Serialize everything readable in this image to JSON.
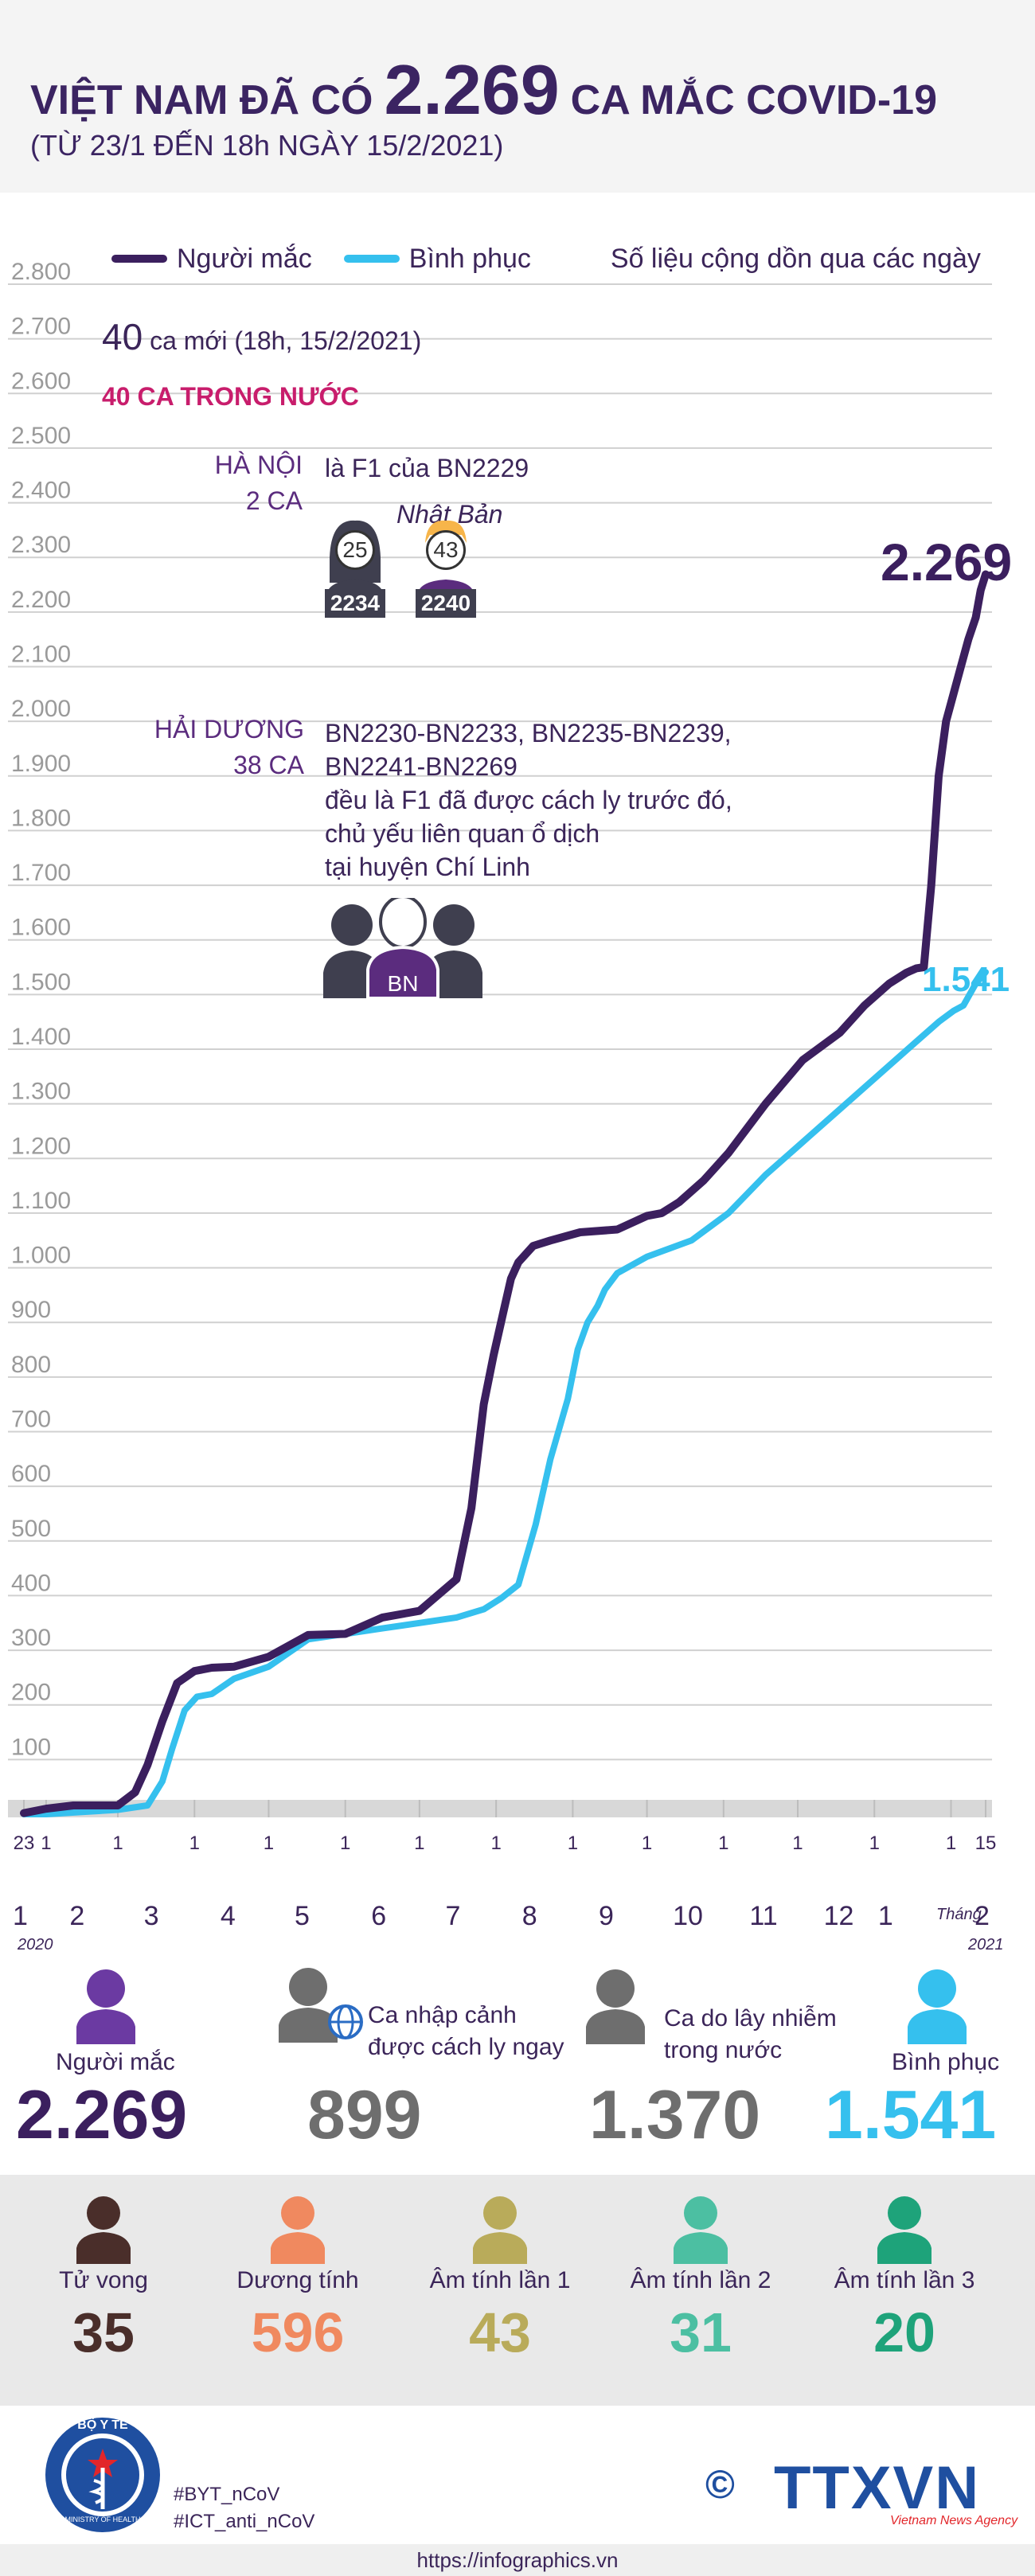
{
  "header": {
    "title_prefix": "VIỆT NAM ĐÃ CÓ",
    "title_number": "2.269",
    "title_suffix": "CA MẮC COVID-19",
    "subtitle": "(TỪ 23/1 ĐẾN 18h NGÀY 15/2/2021)"
  },
  "legend": {
    "infected_label": "Người mắc",
    "recovered_label": "Bình phục",
    "note": "Số liệu cộng dồn qua các ngày"
  },
  "colors": {
    "infected": "#3b1f5e",
    "recovered": "#35c0ee",
    "deaths": "#4a2e2a",
    "positive": "#f0895f",
    "neg1": "#b9ab5a",
    "neg2": "#4cbfa2",
    "neg3": "#1ea37a",
    "imported": "#6e6e6e",
    "domestic_red": "#c81d6c"
  },
  "annotations": {
    "new_cases_number": "40",
    "new_cases_text": "ca mới (18h, 15/2/2021)",
    "domestic": "40 CA TRONG NƯỚC",
    "hanoi_name": "HÀ NỘI",
    "hanoi_count": "2 CA",
    "hanoi_note": "là F1 của BN2229",
    "hanoi_origin": "Nhật Bản",
    "patient1_age": "25",
    "patient1_id": "2234",
    "patient2_age": "43",
    "patient2_id": "2240",
    "haiduong_name": "HẢI DƯƠNG",
    "haiduong_count": "38 CA",
    "haiduong_lines": [
      "BN2230-BN2233, BN2235-BN2239,",
      "BN2241-BN2269",
      "đều là F1 đã được cách ly trước đó,",
      "chủ yếu liên quan ổ dịch",
      "tại huyện Chí Linh"
    ],
    "group_badge": "BN",
    "end_infected": "2.269",
    "end_recovered": "1.541"
  },
  "chart_data": {
    "type": "line",
    "title": "Số liệu cộng dồn qua các ngày",
    "xlabel": "Tháng",
    "ylabel": "",
    "ylim": [
      0,
      2800
    ],
    "y_ticks": [
      100,
      200,
      300,
      400,
      500,
      600,
      700,
      800,
      900,
      1000,
      1100,
      1200,
      1300,
      1400,
      1500,
      1600,
      1700,
      1800,
      1900,
      2000,
      2100,
      2200,
      2300,
      2400,
      2500,
      2600,
      2700,
      2800
    ],
    "y_tick_labels": [
      "100",
      "200",
      "300",
      "400",
      "500",
      "600",
      "700",
      "800",
      "900",
      "1.000",
      "1.100",
      "1.200",
      "1.300",
      "1.400",
      "1.500",
      "1.600",
      "1.700",
      "1.800",
      "1.900",
      "2.000",
      "2.100",
      "2.200",
      "2.300",
      "2.400",
      "2.500",
      "2.600",
      "2.700",
      "2.800"
    ],
    "x_unit": "day index from 23/1/2020",
    "x_range": [
      0,
      389
    ],
    "day_ticks": [
      {
        "day": 0,
        "label": "23"
      },
      {
        "day": 9,
        "label": "1"
      },
      {
        "day": 38,
        "label": "1"
      },
      {
        "day": 69,
        "label": "1"
      },
      {
        "day": 99,
        "label": "1"
      },
      {
        "day": 130,
        "label": "1"
      },
      {
        "day": 160,
        "label": "1"
      },
      {
        "day": 191,
        "label": "1"
      },
      {
        "day": 222,
        "label": "1"
      },
      {
        "day": 252,
        "label": "1"
      },
      {
        "day": 283,
        "label": "1"
      },
      {
        "day": 313,
        "label": "1"
      },
      {
        "day": 344,
        "label": "1"
      },
      {
        "day": 375,
        "label": "1"
      },
      {
        "day": 389,
        "label": "15"
      }
    ],
    "month_labels": [
      {
        "day": 0,
        "label": "1"
      },
      {
        "day": 23,
        "label": "2"
      },
      {
        "day": 53,
        "label": "3"
      },
      {
        "day": 84,
        "label": "4"
      },
      {
        "day": 114,
        "label": "5"
      },
      {
        "day": 145,
        "label": "6"
      },
      {
        "day": 175,
        "label": "7"
      },
      {
        "day": 206,
        "label": "8"
      },
      {
        "day": 237,
        "label": "9"
      },
      {
        "day": 267,
        "label": "10"
      },
      {
        "day": 298,
        "label": "11"
      },
      {
        "day": 328,
        "label": "12"
      },
      {
        "day": 350,
        "label": "1"
      },
      {
        "day": 389,
        "label": "2"
      }
    ],
    "year_start": "2020",
    "year_end": "2021",
    "month_word": "Tháng",
    "series": [
      {
        "name": "Người mắc",
        "x": [
          0,
          9,
          20,
          38,
          45,
          50,
          56,
          62,
          69,
          76,
          85,
          99,
          115,
          130,
          145,
          160,
          175,
          181,
          186,
          190,
          194,
          197,
          200,
          206,
          213,
          225,
          240,
          252,
          258,
          265,
          275,
          285,
          300,
          315,
          330,
          340,
          350,
          357,
          361,
          364,
          367,
          370,
          373,
          376,
          379,
          382,
          385,
          387,
          389
        ],
        "values": [
          2,
          10,
          16,
          16,
          40,
          90,
          170,
          240,
          262,
          268,
          270,
          288,
          328,
          330,
          360,
          372,
          430,
          560,
          750,
          840,
          920,
          980,
          1010,
          1040,
          1050,
          1065,
          1070,
          1095,
          1100,
          1120,
          1160,
          1210,
          1300,
          1380,
          1430,
          1480,
          1520,
          1540,
          1548,
          1550,
          1700,
          1900,
          2000,
          2050,
          2100,
          2150,
          2190,
          2240,
          2269
        ]
      },
      {
        "name": "Bình phục",
        "x": [
          0,
          9,
          38,
          50,
          56,
          60,
          65,
          70,
          76,
          85,
          99,
          115,
          130,
          145,
          160,
          175,
          186,
          193,
          200,
          207,
          213,
          220,
          224,
          228,
          232,
          235,
          240,
          252,
          270,
          285,
          300,
          315,
          330,
          345,
          360,
          370,
          376,
          380,
          385,
          389
        ],
        "values": [
          0,
          0,
          8,
          16,
          60,
          120,
          190,
          215,
          220,
          248,
          270,
          320,
          330,
          340,
          350,
          360,
          375,
          395,
          420,
          530,
          650,
          760,
          850,
          900,
          930,
          960,
          990,
          1020,
          1050,
          1100,
          1170,
          1230,
          1290,
          1350,
          1410,
          1450,
          1470,
          1480,
          1520,
          1541
        ]
      }
    ]
  },
  "stats_main": [
    {
      "label": "Người mắc",
      "value": "2.269"
    },
    {
      "label": "Ca nhập cảnh",
      "label2": "được cách ly ngay",
      "value": "899"
    },
    {
      "label": "Ca do lây nhiễm",
      "label2": "trong nước",
      "value": "1.370"
    },
    {
      "label": "Bình phục",
      "value": "1.541"
    }
  ],
  "stats_secondary": [
    {
      "label": "Tử vong",
      "value": "35"
    },
    {
      "label": "Dương tính",
      "value": "596"
    },
    {
      "label": "Âm tính lần 1",
      "value": "43"
    },
    {
      "label": "Âm tính lần 2",
      "value": "31"
    },
    {
      "label": "Âm tính lần 3",
      "value": "20"
    }
  ],
  "footer": {
    "ministry_top": "BỘ Y TẾ",
    "ministry_bottom": "MINISTRY OF HEALTH",
    "hashtag1": "#BYT_nCoV",
    "hashtag2": "#ICT_anti_nCoV",
    "copyright": "©",
    "brand": "TTXVN",
    "brand_sub": "Vietnam News Agency",
    "url": "https://infographics.vn"
  }
}
